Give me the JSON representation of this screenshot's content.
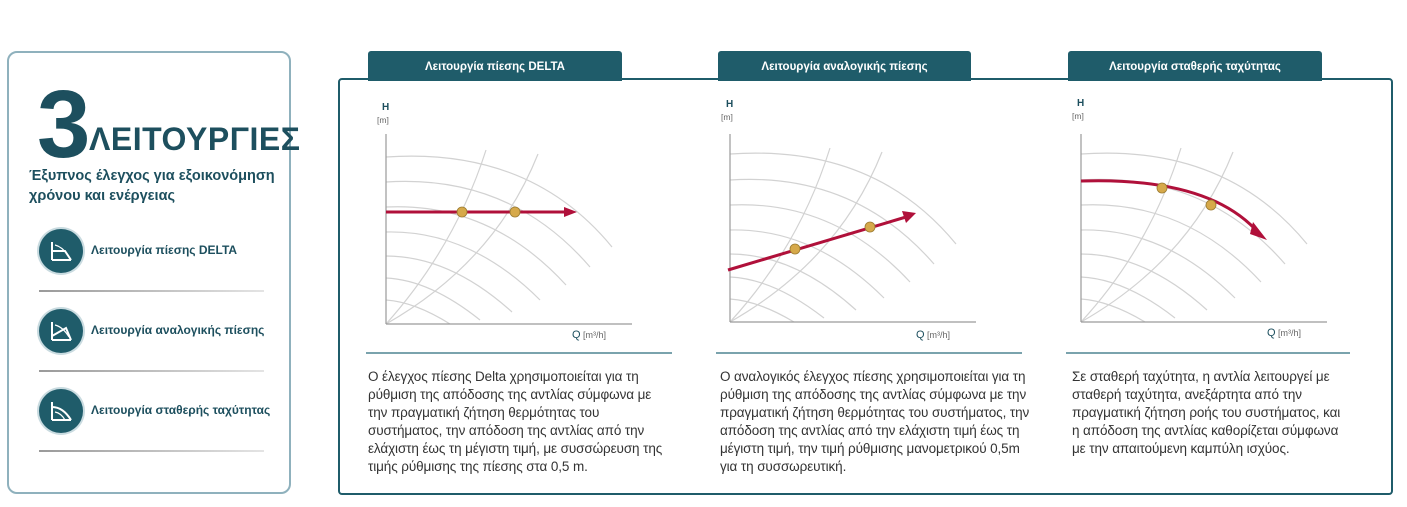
{
  "left_panel": {
    "hero_number": "3",
    "hero_word": "ΛΕΙΤΟΥΡΓΙΕΣ",
    "subtitle": "Έξυπνος έλεγχος για εξοικονόμηση χρόνου και ενέργειας",
    "items": [
      {
        "label": "Λειτουργία πίεσης DELTA",
        "icon": "delta-pressure-icon"
      },
      {
        "label": "Λειτουργία αναλογικής πίεσης",
        "icon": "proportional-pressure-icon"
      },
      {
        "label": "Λειτουργία σταθερής ταχύτητας",
        "icon": "constant-speed-icon"
      }
    ]
  },
  "panels": [
    {
      "tab_label": "Λειτουργία πίεσης DELTA",
      "y_axis_label": "H",
      "y_axis_unit": "[m]",
      "x_axis_label": "Q",
      "x_axis_unit": "[m³/h]",
      "description": "Ο έλεγχος πίεσης Delta χρησιμοποιείται για τη ρύθμιση της απόδοσης της αντλίας σύμφωνα με την πραγματική ζήτηση θερμότητας του συστήματος, την απόδοση της αντλίας από την ελάχιστη έως τη μέγιστη τιμή, με συσσώρευση της τιμής ρύθμισης της πίεσης στα 0,5 m."
    },
    {
      "tab_label": "Λειτουργία αναλογικής πίεσης",
      "y_axis_label": "H",
      "y_axis_unit": "[m]",
      "x_axis_label": "Q",
      "x_axis_unit": "[m³/h]",
      "description": "Ο αναλογικός έλεγχος πίεσης χρησιμοποιείται για τη ρύθμιση της απόδοσης της αντλίας σύμφωνα με την πραγματική ζήτηση θερμότητας του συστήματος, την απόδοση της αντλίας από την ελάχιστη τιμή έως τη μέγιστη τιμή, την τιμή ρύθμισης μανομετρικού 0,5m για τη συσσωρευτική."
    },
    {
      "tab_label": "Λειτουργία σταθερής ταχύτητας",
      "y_axis_label": "H",
      "y_axis_unit": "[m]",
      "x_axis_label": "Q",
      "x_axis_unit": "[m³/h]",
      "description": "Σε σταθερή ταχύτητα, η αντλία λειτουργεί με σταθερή ταχύτητα, ανεξάρτητα από την πραγματική ζήτηση ροής του συστήματος, και η απόδοση της αντλίας καθορίζεται σύμφωνα με την απαιτούμενη καμπύλη ισχύος."
    }
  ],
  "colors": {
    "brand": "#1f5c6a",
    "heading": "#1d4f5e",
    "curve": "#b0103a",
    "point": "#d6a94a",
    "grid": "#d2d2d2"
  }
}
